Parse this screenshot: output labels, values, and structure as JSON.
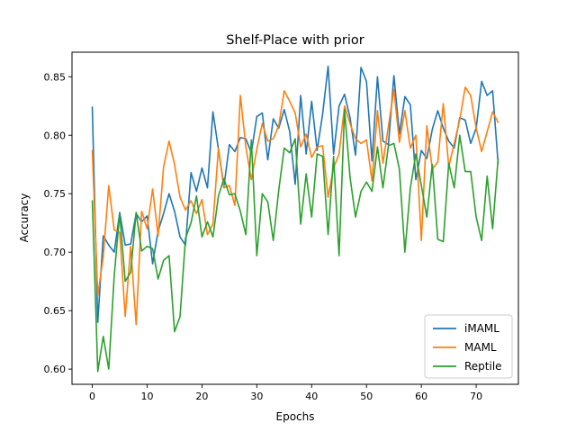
{
  "chart_data": {
    "type": "line",
    "title": "Shelf-Place with prior",
    "xlabel": "Epochs",
    "ylabel": "Accuracy",
    "xlim": [
      -3.7,
      77.7
    ],
    "ylim": [
      0.587,
      0.871
    ],
    "xticks": [
      0,
      10,
      20,
      30,
      40,
      50,
      60,
      70
    ],
    "yticks": [
      0.6,
      0.65,
      0.7,
      0.75,
      0.8,
      0.85
    ],
    "ytick_labels": [
      "0.60",
      "0.65",
      "0.70",
      "0.75",
      "0.80",
      "0.85"
    ],
    "grid": false,
    "legend_position": "lower-right",
    "x": [
      0,
      1,
      2,
      3,
      4,
      5,
      6,
      7,
      8,
      9,
      10,
      11,
      12,
      13,
      14,
      15,
      16,
      17,
      18,
      19,
      20,
      21,
      22,
      23,
      24,
      25,
      26,
      27,
      28,
      29,
      30,
      31,
      32,
      33,
      34,
      35,
      36,
      37,
      38,
      39,
      40,
      41,
      42,
      43,
      44,
      45,
      46,
      47,
      48,
      49,
      50,
      51,
      52,
      53,
      54,
      55,
      56,
      57,
      58,
      59,
      60,
      61,
      62,
      63,
      64,
      65,
      66,
      67,
      68,
      69,
      70,
      71,
      72,
      73,
      74
    ],
    "series": [
      {
        "name": "iMAML",
        "color": "#1f77b4",
        "values": [
          0.824,
          0.64,
          0.714,
          0.706,
          0.7,
          0.734,
          0.706,
          0.707,
          0.733,
          0.726,
          0.731,
          0.69,
          0.718,
          0.733,
          0.75,
          0.735,
          0.713,
          0.706,
          0.768,
          0.752,
          0.772,
          0.755,
          0.82,
          0.788,
          0.756,
          0.792,
          0.786,
          0.798,
          0.797,
          0.785,
          0.816,
          0.819,
          0.779,
          0.814,
          0.806,
          0.822,
          0.803,
          0.758,
          0.834,
          0.784,
          0.829,
          0.787,
          0.818,
          0.859,
          0.784,
          0.825,
          0.835,
          0.815,
          0.783,
          0.858,
          0.846,
          0.778,
          0.85,
          0.795,
          0.792,
          0.851,
          0.801,
          0.833,
          0.826,
          0.762,
          0.787,
          0.78,
          0.805,
          0.821,
          0.806,
          0.795,
          0.789,
          0.815,
          0.813,
          0.793,
          0.806,
          0.846,
          0.834,
          0.838,
          0.776
        ]
      },
      {
        "name": "MAML",
        "color": "#ff7f0e",
        "values": [
          0.787,
          0.663,
          0.696,
          0.757,
          0.719,
          0.717,
          0.645,
          0.705,
          0.638,
          0.735,
          0.72,
          0.754,
          0.714,
          0.773,
          0.795,
          0.775,
          0.747,
          0.736,
          0.744,
          0.733,
          0.745,
          0.715,
          0.724,
          0.789,
          0.755,
          0.757,
          0.74,
          0.834,
          0.79,
          0.762,
          0.788,
          0.81,
          0.795,
          0.797,
          0.808,
          0.838,
          0.829,
          0.819,
          0.79,
          0.801,
          0.781,
          0.79,
          0.791,
          0.747,
          0.772,
          0.784,
          0.825,
          0.81,
          0.797,
          0.793,
          0.796,
          0.761,
          0.821,
          0.776,
          0.808,
          0.839,
          0.794,
          0.821,
          0.789,
          0.8,
          0.71,
          0.808,
          0.771,
          0.777,
          0.827,
          0.773,
          0.793,
          0.813,
          0.841,
          0.834,
          0.806,
          0.786,
          0.803,
          0.82,
          0.811
        ]
      },
      {
        "name": "Reptile",
        "color": "#2ca02c",
        "values": [
          0.744,
          0.598,
          0.628,
          0.6,
          0.68,
          0.733,
          0.675,
          0.683,
          0.734,
          0.701,
          0.705,
          0.703,
          0.677,
          0.693,
          0.697,
          0.632,
          0.645,
          0.712,
          0.725,
          0.748,
          0.713,
          0.726,
          0.713,
          0.748,
          0.763,
          0.749,
          0.75,
          0.735,
          0.715,
          0.796,
          0.697,
          0.75,
          0.743,
          0.71,
          0.753,
          0.789,
          0.785,
          0.797,
          0.724,
          0.767,
          0.73,
          0.784,
          0.782,
          0.715,
          0.782,
          0.697,
          0.822,
          0.764,
          0.73,
          0.752,
          0.76,
          0.752,
          0.79,
          0.755,
          0.791,
          0.793,
          0.771,
          0.7,
          0.755,
          0.784,
          0.757,
          0.73,
          0.775,
          0.711,
          0.709,
          0.776,
          0.755,
          0.8,
          0.769,
          0.769,
          0.73,
          0.71,
          0.765,
          0.72,
          0.78
        ]
      }
    ]
  }
}
